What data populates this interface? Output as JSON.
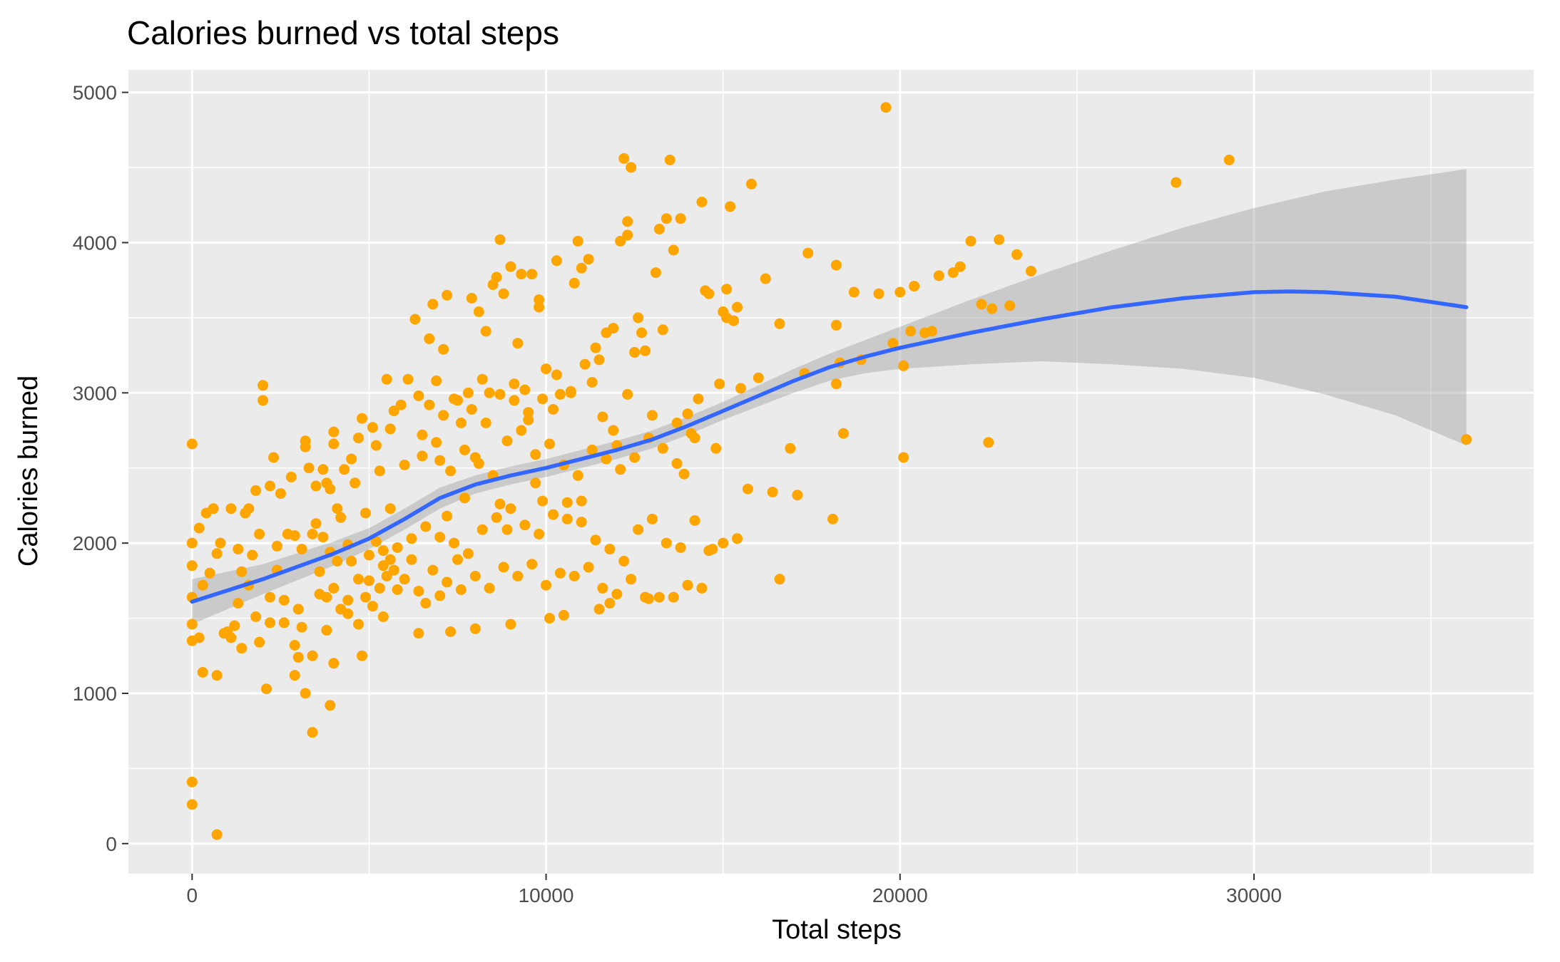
{
  "chart_data": {
    "type": "scatter",
    "title": "Calories burned vs total steps",
    "xlabel": "Total steps",
    "ylabel": "Calories burned",
    "xlim": [
      -1800,
      37900
    ],
    "ylim": [
      -200,
      5150
    ],
    "x_ticks": [
      0,
      10000,
      20000,
      30000
    ],
    "x_tick_labels": [
      "0",
      "10000",
      "20000",
      "30000"
    ],
    "y_ticks": [
      0,
      1000,
      2000,
      3000,
      4000,
      5000
    ],
    "y_tick_labels": [
      "0",
      "1000",
      "2000",
      "3000",
      "4000",
      "5000"
    ],
    "grid": true,
    "point_color": "#FFA500",
    "smooth_color": "#3366FF",
    "ribbon_color": "#999999",
    "panel_color": "#EBEBEB",
    "points": [
      [
        0,
        2660
      ],
      [
        0,
        2000
      ],
      [
        0,
        1850
      ],
      [
        0,
        1640
      ],
      [
        0,
        1460
      ],
      [
        0,
        1350
      ],
      [
        0,
        410
      ],
      [
        0,
        260
      ],
      [
        700,
        60
      ],
      [
        200,
        2100
      ],
      [
        300,
        1720
      ],
      [
        400,
        2200
      ],
      [
        500,
        1800
      ],
      [
        600,
        2230
      ],
      [
        700,
        1930
      ],
      [
        800,
        2000
      ],
      [
        300,
        1140
      ],
      [
        700,
        1120
      ],
      [
        200,
        1370
      ],
      [
        900,
        1400
      ],
      [
        1000,
        1410
      ],
      [
        1100,
        2230
      ],
      [
        1300,
        1960
      ],
      [
        1300,
        1600
      ],
      [
        1400,
        1300
      ],
      [
        1500,
        2200
      ],
      [
        1600,
        2230
      ],
      [
        1700,
        1920
      ],
      [
        1800,
        2350
      ],
      [
        1900,
        2060
      ],
      [
        1900,
        1340
      ],
      [
        2000,
        2950
      ],
      [
        2000,
        3050
      ],
      [
        2100,
        1030
      ],
      [
        2200,
        2380
      ],
      [
        2200,
        1470
      ],
      [
        2300,
        2570
      ],
      [
        2400,
        1980
      ],
      [
        2500,
        2330
      ],
      [
        2600,
        1620
      ],
      [
        2700,
        2060
      ],
      [
        2800,
        2440
      ],
      [
        2900,
        1320
      ],
      [
        2900,
        1120
      ],
      [
        3000,
        1240
      ],
      [
        3100,
        1960
      ],
      [
        3100,
        1440
      ],
      [
        3200,
        2680
      ],
      [
        3200,
        2640
      ],
      [
        3200,
        1000
      ],
      [
        3300,
        2500
      ],
      [
        3400,
        2060
      ],
      [
        3400,
        1250
      ],
      [
        3400,
        740
      ],
      [
        3500,
        2380
      ],
      [
        3600,
        1810
      ],
      [
        3600,
        1660
      ],
      [
        3700,
        2490
      ],
      [
        3800,
        2400
      ],
      [
        3800,
        1420
      ],
      [
        3900,
        2360
      ],
      [
        3900,
        920
      ],
      [
        4000,
        2740
      ],
      [
        4000,
        2660
      ],
      [
        4000,
        1200
      ],
      [
        4100,
        2230
      ],
      [
        4200,
        2170
      ],
      [
        4300,
        2490
      ],
      [
        4400,
        1990
      ],
      [
        4400,
        1530
      ],
      [
        4500,
        2560
      ],
      [
        4600,
        2400
      ],
      [
        4700,
        2700
      ],
      [
        4700,
        1460
      ],
      [
        4800,
        2830
      ],
      [
        4800,
        1250
      ],
      [
        4900,
        2200
      ],
      [
        5000,
        1920
      ],
      [
        5000,
        1750
      ],
      [
        5100,
        2770
      ],
      [
        5200,
        2650
      ],
      [
        5300,
        2480
      ],
      [
        5400,
        1850
      ],
      [
        5400,
        1510
      ],
      [
        5500,
        3090
      ],
      [
        5600,
        2760
      ],
      [
        5600,
        2230
      ],
      [
        5700,
        2880
      ],
      [
        5800,
        1690
      ],
      [
        5900,
        2920
      ],
      [
        6000,
        2520
      ],
      [
        6100,
        3090
      ],
      [
        6200,
        1890
      ],
      [
        6300,
        3490
      ],
      [
        6400,
        2980
      ],
      [
        6400,
        1400
      ],
      [
        6500,
        2720
      ],
      [
        6600,
        1600
      ],
      [
        6700,
        3360
      ],
      [
        6800,
        3590
      ],
      [
        6900,
        3080
      ],
      [
        7000,
        2550
      ],
      [
        7000,
        1650
      ],
      [
        7100,
        3290
      ],
      [
        7200,
        3650
      ],
      [
        7200,
        2180
      ],
      [
        7300,
        1410
      ],
      [
        7400,
        2960
      ],
      [
        7500,
        1890
      ],
      [
        7600,
        2800
      ],
      [
        7700,
        2300
      ],
      [
        7800,
        3000
      ],
      [
        7900,
        3630
      ],
      [
        8000,
        2570
      ],
      [
        8000,
        1430
      ],
      [
        8100,
        3540
      ],
      [
        8200,
        3090
      ],
      [
        8300,
        3410
      ],
      [
        8400,
        3000
      ],
      [
        8500,
        3720
      ],
      [
        8600,
        3770
      ],
      [
        8700,
        4020
      ],
      [
        8700,
        2260
      ],
      [
        8800,
        3660
      ],
      [
        8900,
        2090
      ],
      [
        9000,
        3840
      ],
      [
        9000,
        1460
      ],
      [
        9100,
        2950
      ],
      [
        9200,
        3330
      ],
      [
        9300,
        3790
      ],
      [
        9400,
        3020
      ],
      [
        9500,
        2820
      ],
      [
        9600,
        3790
      ],
      [
        9700,
        2400
      ],
      [
        9800,
        3570
      ],
      [
        9800,
        3620
      ],
      [
        9900,
        2280
      ],
      [
        10000,
        3160
      ],
      [
        10100,
        1500
      ],
      [
        10200,
        2890
      ],
      [
        10300,
        3880
      ],
      [
        10400,
        2990
      ],
      [
        10500,
        1520
      ],
      [
        10600,
        2160
      ],
      [
        10700,
        3000
      ],
      [
        10800,
        3730
      ],
      [
        10900,
        4010
      ],
      [
        11000,
        3830
      ],
      [
        11000,
        2280
      ],
      [
        11200,
        3890
      ],
      [
        11300,
        3070
      ],
      [
        11400,
        3300
      ],
      [
        11500,
        1560
      ],
      [
        11600,
        2840
      ],
      [
        11700,
        3400
      ],
      [
        11800,
        1600
      ],
      [
        11900,
        3430
      ],
      [
        12000,
        2650
      ],
      [
        12100,
        4010
      ],
      [
        12200,
        4560
      ],
      [
        12300,
        4050
      ],
      [
        12300,
        4140
      ],
      [
        12400,
        4500
      ],
      [
        12500,
        3270
      ],
      [
        12600,
        3500
      ],
      [
        12700,
        3400
      ],
      [
        12800,
        3280
      ],
      [
        12900,
        1630
      ],
      [
        13000,
        2850
      ],
      [
        13100,
        3800
      ],
      [
        13200,
        4090
      ],
      [
        13300,
        3420
      ],
      [
        13400,
        4160
      ],
      [
        13500,
        4550
      ],
      [
        13600,
        3950
      ],
      [
        13700,
        2530
      ],
      [
        13800,
        4160
      ],
      [
        13900,
        2460
      ],
      [
        14000,
        2860
      ],
      [
        14200,
        2700
      ],
      [
        14300,
        2960
      ],
      [
        14400,
        4270
      ],
      [
        14500,
        3680
      ],
      [
        14600,
        3660
      ],
      [
        14700,
        1960
      ],
      [
        14800,
        2630
      ],
      [
        14900,
        3060
      ],
      [
        15000,
        3540
      ],
      [
        15100,
        3690
      ],
      [
        15100,
        3500
      ],
      [
        15200,
        4240
      ],
      [
        15300,
        3480
      ],
      [
        15400,
        3570
      ],
      [
        15500,
        3030
      ],
      [
        15700,
        2360
      ],
      [
        15800,
        4390
      ],
      [
        16000,
        3100
      ],
      [
        16200,
        3760
      ],
      [
        16400,
        2340
      ],
      [
        16600,
        3460
      ],
      [
        16600,
        1760
      ],
      [
        16900,
        2630
      ],
      [
        17100,
        2320
      ],
      [
        17300,
        3130
      ],
      [
        17400,
        3930
      ],
      [
        18100,
        2160
      ],
      [
        18200,
        3850
      ],
      [
        18200,
        3450
      ],
      [
        18200,
        3060
      ],
      [
        18300,
        3200
      ],
      [
        18400,
        2730
      ],
      [
        18700,
        3670
      ],
      [
        18900,
        3220
      ],
      [
        19400,
        3660
      ],
      [
        19600,
        4900
      ],
      [
        19800,
        3330
      ],
      [
        20000,
        3670
      ],
      [
        20100,
        2570
      ],
      [
        20100,
        3180
      ],
      [
        20300,
        3410
      ],
      [
        20400,
        3710
      ],
      [
        20700,
        3400
      ],
      [
        20900,
        3410
      ],
      [
        21100,
        3780
      ],
      [
        21500,
        3800
      ],
      [
        21700,
        3840
      ],
      [
        22000,
        4010
      ],
      [
        22300,
        3590
      ],
      [
        22500,
        2670
      ],
      [
        22600,
        3560
      ],
      [
        22800,
        4020
      ],
      [
        23100,
        3580
      ],
      [
        23300,
        3920
      ],
      [
        23700,
        3810
      ],
      [
        27800,
        4400
      ],
      [
        29300,
        4550
      ],
      [
        36000,
        2690
      ],
      [
        5200,
        2010
      ],
      [
        5400,
        1950
      ],
      [
        5600,
        1890
      ],
      [
        5800,
        1970
      ],
      [
        6200,
        2030
      ],
      [
        6600,
        2110
      ],
      [
        7000,
        2040
      ],
      [
        7400,
        2000
      ],
      [
        7800,
        1930
      ],
      [
        8200,
        2090
      ],
      [
        8600,
        2170
      ],
      [
        9000,
        2230
      ],
      [
        9400,
        2120
      ],
      [
        9800,
        2060
      ],
      [
        10200,
        2190
      ],
      [
        10600,
        2270
      ],
      [
        11000,
        2140
      ],
      [
        11400,
        2020
      ],
      [
        11800,
        1960
      ],
      [
        12200,
        1880
      ],
      [
        12600,
        2090
      ],
      [
        13000,
        2160
      ],
      [
        13400,
        2000
      ],
      [
        13800,
        1970
      ],
      [
        14200,
        2150
      ],
      [
        14600,
        1950
      ],
      [
        15000,
        2000
      ],
      [
        15400,
        2030
      ],
      [
        6000,
        1760
      ],
      [
        6400,
        1680
      ],
      [
        6800,
        1820
      ],
      [
        7200,
        1740
      ],
      [
        7600,
        1690
      ],
      [
        8000,
        1780
      ],
      [
        8400,
        1700
      ],
      [
        8800,
        1840
      ],
      [
        9200,
        1780
      ],
      [
        9600,
        1860
      ],
      [
        10000,
        1720
      ],
      [
        10400,
        1800
      ],
      [
        10800,
        1780
      ],
      [
        11200,
        1840
      ],
      [
        11600,
        1700
      ],
      [
        12000,
        1660
      ],
      [
        12400,
        1760
      ],
      [
        12800,
        1640
      ],
      [
        13200,
        1640
      ],
      [
        13600,
        1640
      ],
      [
        14000,
        1720
      ],
      [
        14400,
        1700
      ],
      [
        6500,
        2580
      ],
      [
        6900,
        2670
      ],
      [
        7300,
        2480
      ],
      [
        7700,
        2620
      ],
      [
        8100,
        2530
      ],
      [
        8500,
        2450
      ],
      [
        8900,
        2680
      ],
      [
        9300,
        2750
      ],
      [
        9700,
        2590
      ],
      [
        10100,
        2660
      ],
      [
        10500,
        2520
      ],
      [
        10900,
        2450
      ],
      [
        11300,
        2620
      ],
      [
        11700,
        2560
      ],
      [
        12100,
        2490
      ],
      [
        12500,
        2570
      ],
      [
        12900,
        2700
      ],
      [
        13300,
        2630
      ],
      [
        13700,
        2800
      ],
      [
        14100,
        2730
      ],
      [
        6700,
        2920
      ],
      [
        7100,
        2850
      ],
      [
        7500,
        2950
      ],
      [
        7900,
        2890
      ],
      [
        8300,
        2800
      ],
      [
        8700,
        2990
      ],
      [
        9100,
        3060
      ],
      [
        9500,
        2870
      ],
      [
        9900,
        2960
      ],
      [
        10300,
        3120
      ],
      [
        10700,
        3010
      ],
      [
        11100,
        3190
      ],
      [
        11500,
        3220
      ],
      [
        11900,
        2750
      ],
      [
        12300,
        2990
      ],
      [
        4500,
        1880
      ],
      [
        4700,
        1760
      ],
      [
        4900,
        1640
      ],
      [
        5100,
        1580
      ],
      [
        5300,
        1700
      ],
      [
        5500,
        1780
      ],
      [
        5700,
        1820
      ],
      [
        3800,
        1640
      ],
      [
        4000,
        1700
      ],
      [
        4200,
        1560
      ],
      [
        4400,
        1620
      ],
      [
        3500,
        2130
      ],
      [
        3700,
        2040
      ],
      [
        3900,
        1940
      ],
      [
        4100,
        1880
      ],
      [
        2900,
        2050
      ],
      [
        3000,
        1560
      ],
      [
        2600,
        1470
      ],
      [
        2400,
        1820
      ],
      [
        2200,
        1640
      ],
      [
        1800,
        1510
      ],
      [
        1600,
        1720
      ],
      [
        1400,
        1810
      ],
      [
        1200,
        1450
      ],
      [
        1100,
        1370
      ]
    ],
    "smooth_line": [
      [
        0,
        1610
      ],
      [
        2000,
        1760
      ],
      [
        4000,
        1930
      ],
      [
        5000,
        2030
      ],
      [
        6000,
        2160
      ],
      [
        7000,
        2300
      ],
      [
        8000,
        2390
      ],
      [
        9000,
        2450
      ],
      [
        10000,
        2500
      ],
      [
        11000,
        2560
      ],
      [
        12000,
        2620
      ],
      [
        13000,
        2690
      ],
      [
        14000,
        2780
      ],
      [
        15000,
        2880
      ],
      [
        16000,
        2980
      ],
      [
        17000,
        3080
      ],
      [
        18000,
        3170
      ],
      [
        19000,
        3240
      ],
      [
        20000,
        3300
      ],
      [
        22000,
        3400
      ],
      [
        24000,
        3490
      ],
      [
        26000,
        3570
      ],
      [
        28000,
        3630
      ],
      [
        30000,
        3670
      ],
      [
        31000,
        3675
      ],
      [
        32000,
        3670
      ],
      [
        34000,
        3640
      ],
      [
        36000,
        3570
      ]
    ],
    "ribbon_upper": [
      [
        0,
        1760
      ],
      [
        2000,
        1860
      ],
      [
        4000,
        2010
      ],
      [
        5000,
        2100
      ],
      [
        6000,
        2230
      ],
      [
        7000,
        2370
      ],
      [
        8000,
        2450
      ],
      [
        9000,
        2510
      ],
      [
        10000,
        2560
      ],
      [
        11000,
        2620
      ],
      [
        12000,
        2680
      ],
      [
        13000,
        2750
      ],
      [
        14000,
        2840
      ],
      [
        15000,
        2940
      ],
      [
        16000,
        3050
      ],
      [
        17000,
        3160
      ],
      [
        18000,
        3260
      ],
      [
        19000,
        3350
      ],
      [
        20000,
        3440
      ],
      [
        22000,
        3620
      ],
      [
        24000,
        3790
      ],
      [
        26000,
        3950
      ],
      [
        28000,
        4100
      ],
      [
        30000,
        4230
      ],
      [
        32000,
        4340
      ],
      [
        34000,
        4420
      ],
      [
        36000,
        4490
      ]
    ],
    "ribbon_lower": [
      [
        0,
        1460
      ],
      [
        2000,
        1660
      ],
      [
        4000,
        1850
      ],
      [
        5000,
        1960
      ],
      [
        6000,
        2090
      ],
      [
        7000,
        2230
      ],
      [
        8000,
        2330
      ],
      [
        9000,
        2390
      ],
      [
        10000,
        2440
      ],
      [
        11000,
        2500
      ],
      [
        12000,
        2560
      ],
      [
        13000,
        2630
      ],
      [
        14000,
        2720
      ],
      [
        15000,
        2820
      ],
      [
        16000,
        2910
      ],
      [
        17000,
        3000
      ],
      [
        18000,
        3080
      ],
      [
        19000,
        3130
      ],
      [
        20000,
        3160
      ],
      [
        22000,
        3190
      ],
      [
        24000,
        3210
      ],
      [
        26000,
        3190
      ],
      [
        28000,
        3160
      ],
      [
        30000,
        3100
      ],
      [
        32000,
        2990
      ],
      [
        34000,
        2850
      ],
      [
        36000,
        2650
      ]
    ]
  }
}
